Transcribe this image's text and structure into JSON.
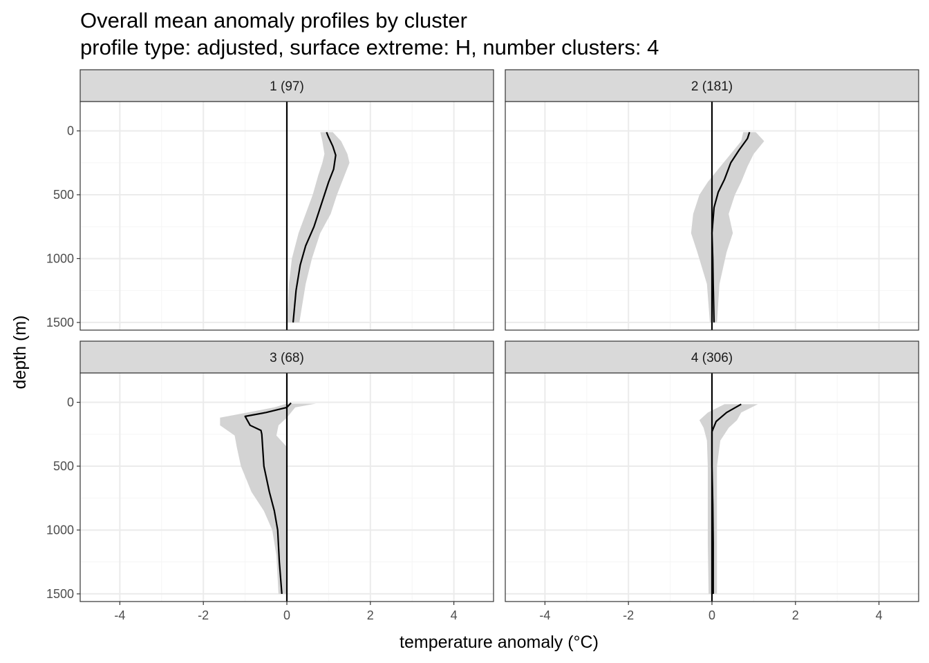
{
  "chart_data": {
    "type": "line",
    "title": "Overall mean anomaly profiles by cluster",
    "subtitle": "profile type: adjusted, surface extreme: H, number clusters: 4",
    "xlabel": "temperature anomaly (°C)",
    "ylabel": "depth (m)",
    "xlim": [
      -4.95,
      4.95
    ],
    "ylim": [
      1560,
      -230
    ],
    "x_ticks": [
      -4,
      -2,
      0,
      2,
      4
    ],
    "x_tick_labels": [
      "-4",
      "-2",
      "0",
      "2",
      "4"
    ],
    "y_ticks": [
      0,
      500,
      1000,
      1500
    ],
    "y_tick_labels": [
      "0",
      "500",
      "1000",
      "1500"
    ],
    "grid": true,
    "reference_line_x": 0,
    "panels": [
      {
        "label": "1 (97)",
        "mean": [
          [
            0.95,
            10
          ],
          [
            1.0,
            50
          ],
          [
            1.1,
            120
          ],
          [
            1.17,
            190
          ],
          [
            1.12,
            300
          ],
          [
            1.0,
            400
          ],
          [
            0.85,
            550
          ],
          [
            0.65,
            750
          ],
          [
            0.45,
            900
          ],
          [
            0.32,
            1050
          ],
          [
            0.22,
            1250
          ],
          [
            0.15,
            1500
          ]
        ],
        "band": [
          [
            0.8,
            1.1,
            10
          ],
          [
            0.85,
            1.3,
            80
          ],
          [
            0.9,
            1.45,
            180
          ],
          [
            0.85,
            1.5,
            250
          ],
          [
            0.75,
            1.38,
            350
          ],
          [
            0.62,
            1.2,
            500
          ],
          [
            0.45,
            1.05,
            650
          ],
          [
            0.28,
            0.8,
            800
          ],
          [
            0.12,
            0.6,
            1000
          ],
          [
            0.05,
            0.45,
            1200
          ],
          [
            0.02,
            0.35,
            1400
          ],
          [
            0.02,
            0.3,
            1500
          ]
        ]
      },
      {
        "label": "2 (181)",
        "mean": [
          [
            0.9,
            10
          ],
          [
            0.85,
            60
          ],
          [
            0.65,
            150
          ],
          [
            0.45,
            250
          ],
          [
            0.3,
            380
          ],
          [
            0.15,
            480
          ],
          [
            0.05,
            600
          ],
          [
            0.0,
            800
          ],
          [
            0.02,
            1000
          ],
          [
            0.03,
            1200
          ],
          [
            0.05,
            1500
          ]
        ],
        "band": [
          [
            0.75,
            1.05,
            10
          ],
          [
            0.7,
            1.25,
            80
          ],
          [
            0.45,
            1.0,
            180
          ],
          [
            0.2,
            0.85,
            280
          ],
          [
            -0.1,
            0.7,
            400
          ],
          [
            -0.3,
            0.55,
            500
          ],
          [
            -0.45,
            0.4,
            650
          ],
          [
            -0.5,
            0.5,
            800
          ],
          [
            -0.35,
            0.35,
            950
          ],
          [
            -0.12,
            0.18,
            1200
          ],
          [
            -0.05,
            0.12,
            1500
          ]
        ]
      },
      {
        "label": "3 (68)",
        "mean": [
          [
            0.1,
            5
          ],
          [
            0.0,
            40
          ],
          [
            -0.5,
            80
          ],
          [
            -1.0,
            110
          ],
          [
            -0.88,
            180
          ],
          [
            -0.62,
            220
          ],
          [
            -0.6,
            250
          ],
          [
            -0.58,
            350
          ],
          [
            -0.55,
            500
          ],
          [
            -0.42,
            700
          ],
          [
            -0.3,
            850
          ],
          [
            -0.22,
            1000
          ],
          [
            -0.18,
            1250
          ],
          [
            -0.12,
            1500
          ]
        ],
        "band": [
          [
            0.7,
            0.0,
            10
          ],
          [
            0.2,
            -0.3,
            40
          ],
          [
            0.0,
            -1.6,
            120
          ],
          [
            -0.2,
            -1.6,
            180
          ],
          [
            -0.25,
            -1.25,
            260
          ],
          [
            0.0,
            -1.2,
            350
          ],
          [
            0.0,
            -1.1,
            500
          ],
          [
            0.0,
            -0.85,
            700
          ],
          [
            0.0,
            -0.55,
            850
          ],
          [
            0.0,
            -0.35,
            1000
          ],
          [
            0.0,
            -0.25,
            1200
          ],
          [
            0.0,
            -0.2,
            1500
          ]
        ]
      },
      {
        "label": "4 (306)",
        "mean": [
          [
            0.7,
            15
          ],
          [
            0.35,
            80
          ],
          [
            0.1,
            150
          ],
          [
            0.0,
            230
          ],
          [
            0.0,
            500
          ],
          [
            0.02,
            800
          ],
          [
            0.03,
            1100
          ],
          [
            0.03,
            1500
          ]
        ],
        "band": [
          [
            0.3,
            1.1,
            15
          ],
          [
            -0.1,
            0.7,
            80
          ],
          [
            -0.3,
            0.6,
            140
          ],
          [
            -0.2,
            0.4,
            200
          ],
          [
            -0.12,
            0.2,
            300
          ],
          [
            -0.1,
            0.12,
            500
          ],
          [
            -0.1,
            0.12,
            800
          ],
          [
            -0.1,
            0.12,
            1100
          ],
          [
            -0.08,
            0.12,
            1500
          ]
        ]
      }
    ]
  },
  "colors": {
    "strip_fill": "#d9d9d9",
    "strip_border": "#333333",
    "panel_border": "#333333",
    "grid_major": "#ebebeb",
    "grid_minor": "#f5f5f5",
    "band": "#d3d3d3",
    "line": "#000000",
    "tick_text": "#4d4d4d"
  }
}
